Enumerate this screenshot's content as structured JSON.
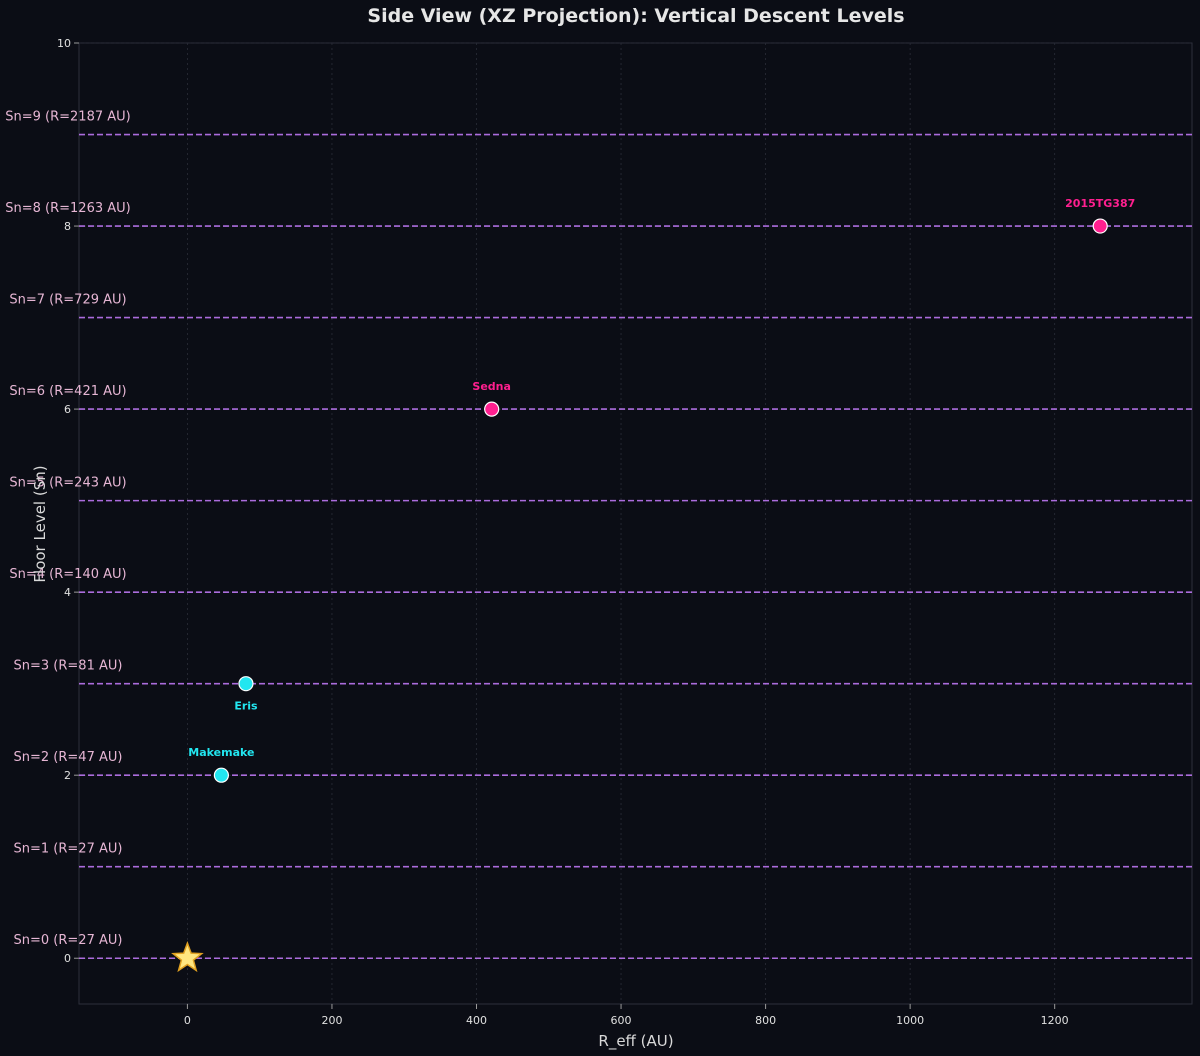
{
  "chart_data": {
    "type": "scatter",
    "title": "Side View (XZ Projection): Vertical Descent Levels",
    "xlabel": "R_eff (AU)",
    "ylabel": "Floor Level (Sn)",
    "xlim": [
      -150,
      1390
    ],
    "ylim": [
      -0.5,
      10
    ],
    "x_ticks": [
      0,
      200,
      400,
      600,
      800,
      1000,
      1200
    ],
    "y_ticks": [
      0,
      2,
      4,
      6,
      8,
      10
    ],
    "grid": true,
    "levels": [
      {
        "n": 0,
        "label": "Sn=0 (R=27 AU)"
      },
      {
        "n": 1,
        "label": "Sn=1 (R=27 AU)"
      },
      {
        "n": 2,
        "label": "Sn=2 (R=47 AU)"
      },
      {
        "n": 3,
        "label": "Sn=3 (R=81 AU)"
      },
      {
        "n": 4,
        "label": "Sn=4 (R=140 AU)"
      },
      {
        "n": 5,
        "label": "Sn=5 (R=243 AU)"
      },
      {
        "n": 6,
        "label": "Sn=6 (R=421 AU)"
      },
      {
        "n": 7,
        "label": "Sn=7 (R=729 AU)"
      },
      {
        "n": 8,
        "label": "Sn=8 (R=1263 AU)"
      },
      {
        "n": 9,
        "label": "Sn=9 (R=2187 AU)"
      }
    ],
    "level_line_color": "#c77dff",
    "origin_marker": {
      "x": 0,
      "y": 0,
      "shape": "star",
      "fill": "#ffe680",
      "stroke": "#e0a020"
    },
    "points": [
      {
        "name": "Makemake",
        "x": 47,
        "y": 2,
        "color": "#22e6f0",
        "label_position": "above"
      },
      {
        "name": "Eris",
        "x": 81,
        "y": 3,
        "color": "#22e6f0",
        "label_position": "below"
      },
      {
        "name": "Sedna",
        "x": 421,
        "y": 6,
        "color": "#ff1f8f",
        "label_position": "above"
      },
      {
        "name": "2015TG387",
        "x": 1263,
        "y": 8,
        "color": "#ff1f8f",
        "label_position": "above"
      }
    ]
  }
}
